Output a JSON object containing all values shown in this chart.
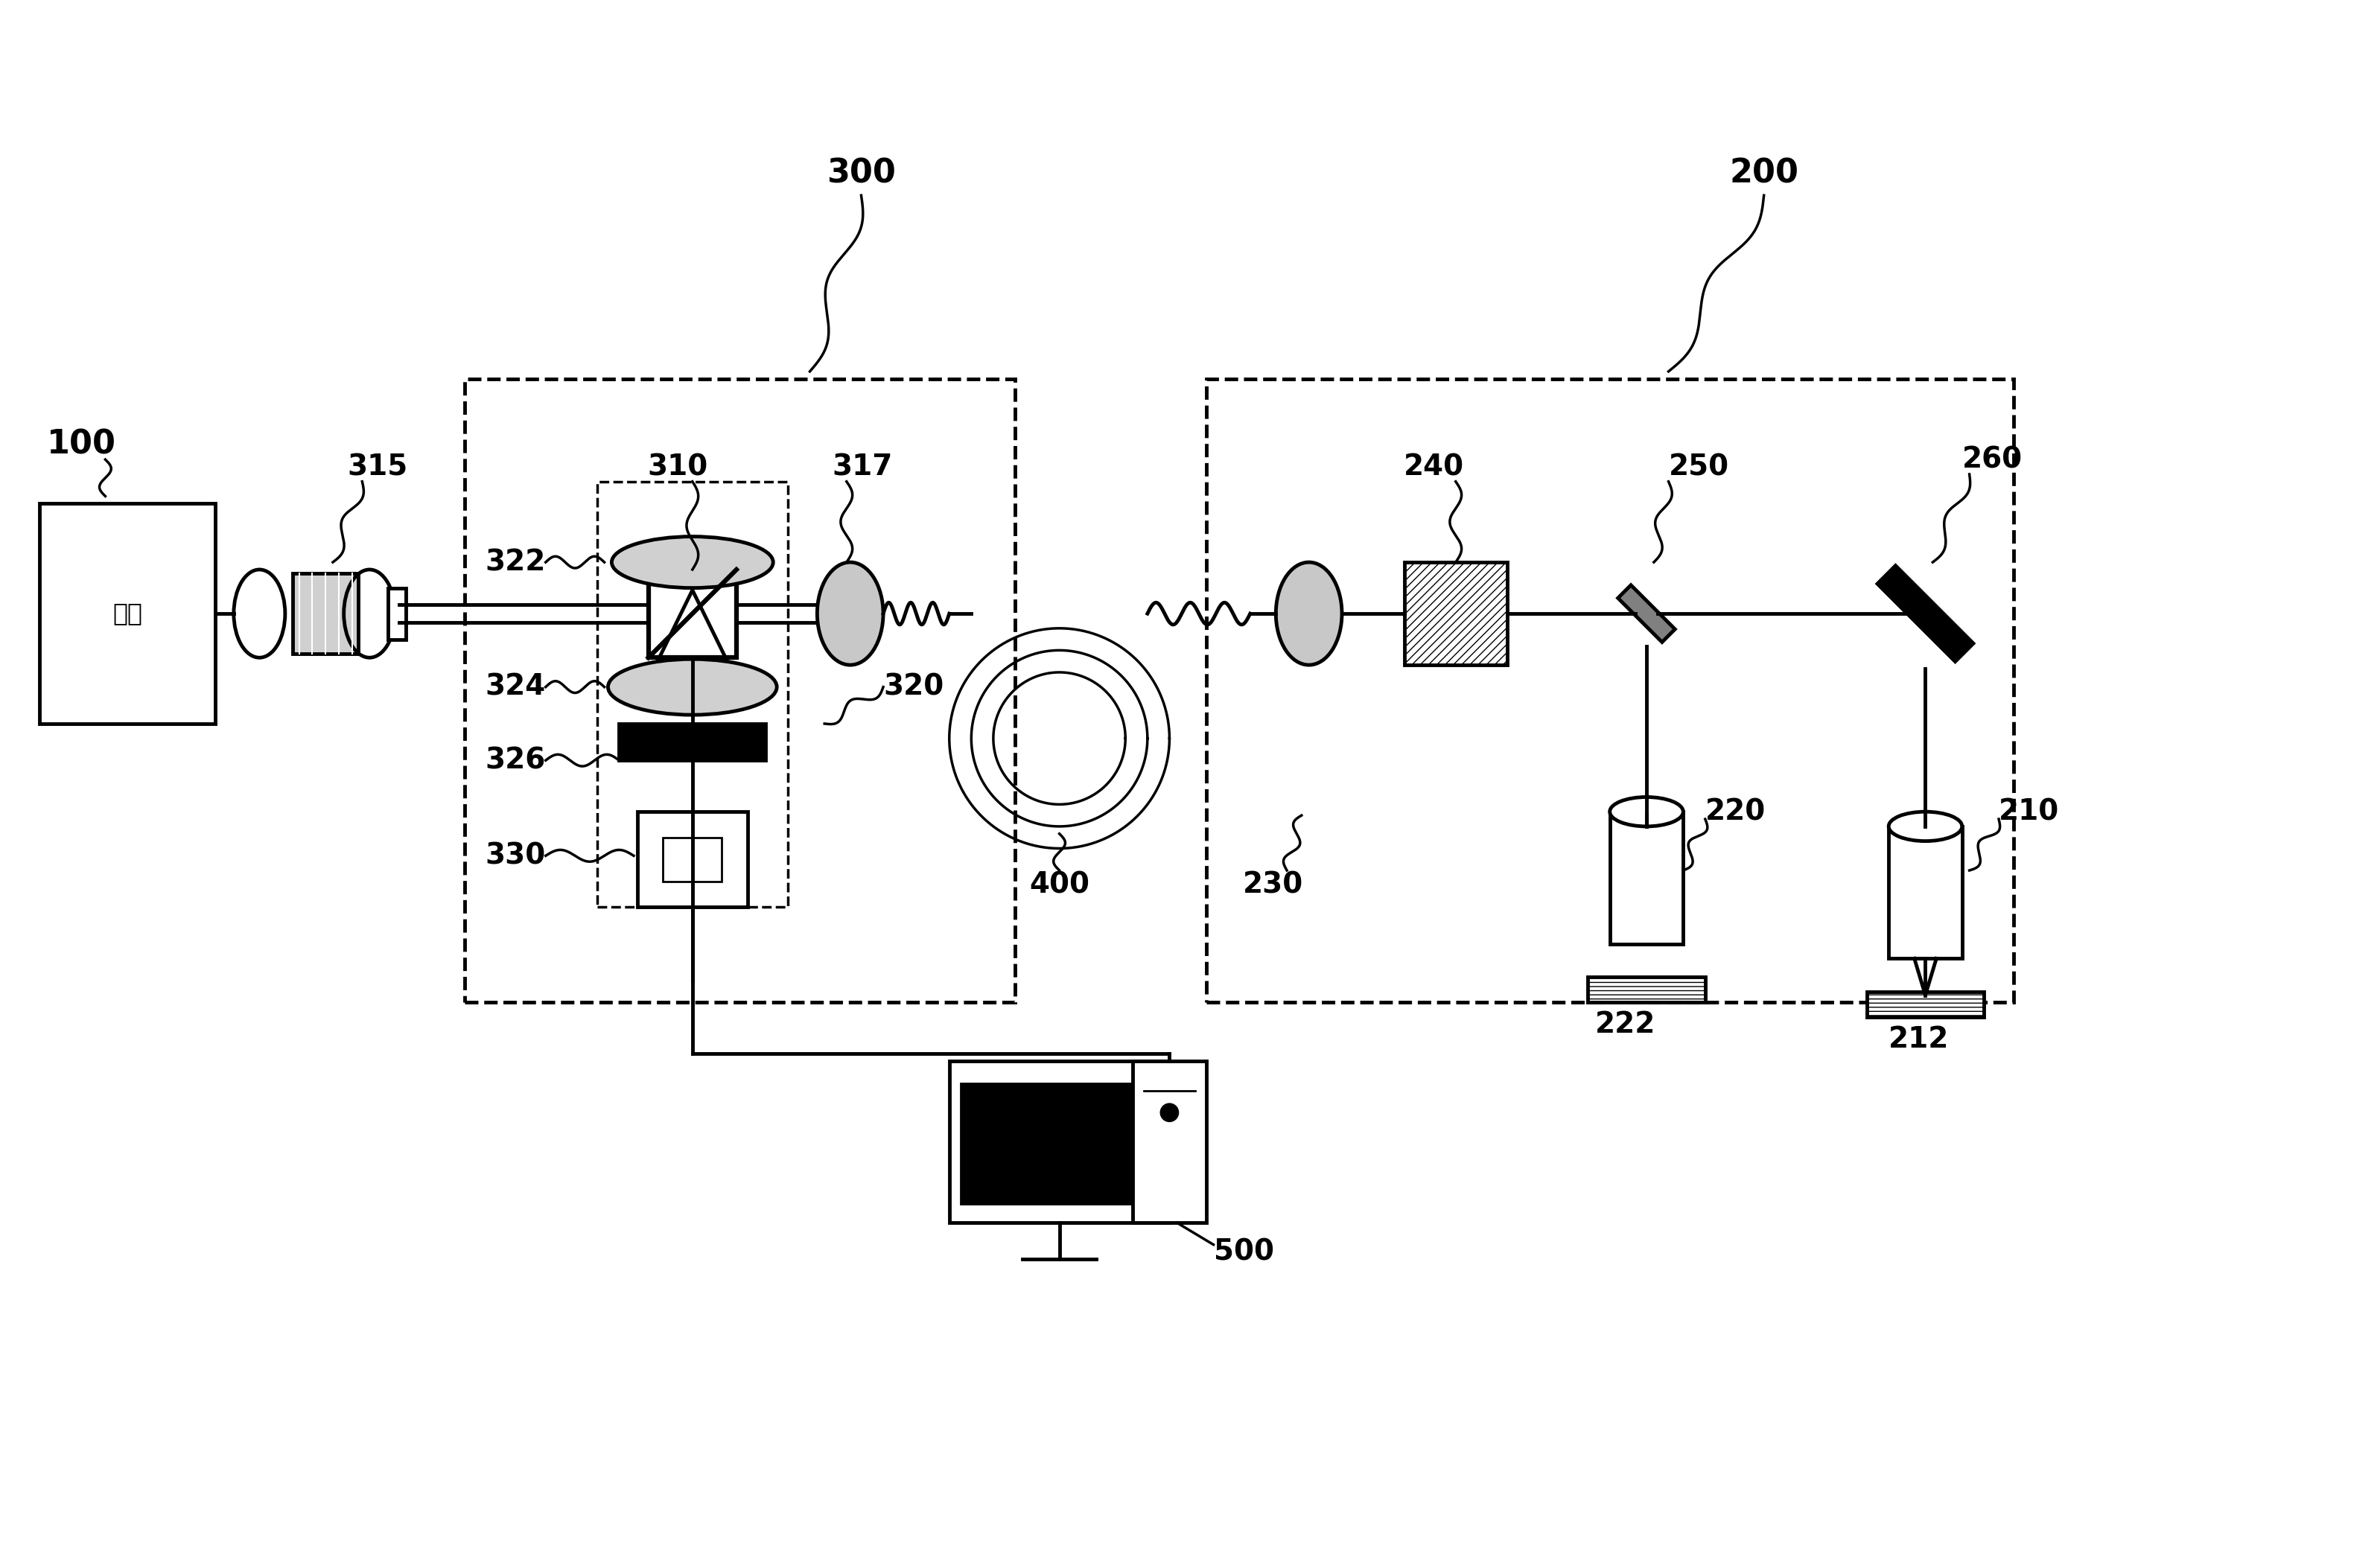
{
  "bg_color": "#ffffff",
  "line_color": "#000000",
  "label_100": "100",
  "label_200": "200",
  "label_300": "300",
  "label_315": "315",
  "label_310": "310",
  "label_317": "317",
  "label_320": "320",
  "label_322": "322",
  "label_324": "324",
  "label_326": "326",
  "label_330": "330",
  "label_400": "400",
  "label_230": "230",
  "label_240": "240",
  "label_250": "250",
  "label_260": "260",
  "label_210": "210",
  "label_212": "212",
  "label_220": "220",
  "label_222": "222",
  "label_500": "500",
  "source_text": "광원"
}
